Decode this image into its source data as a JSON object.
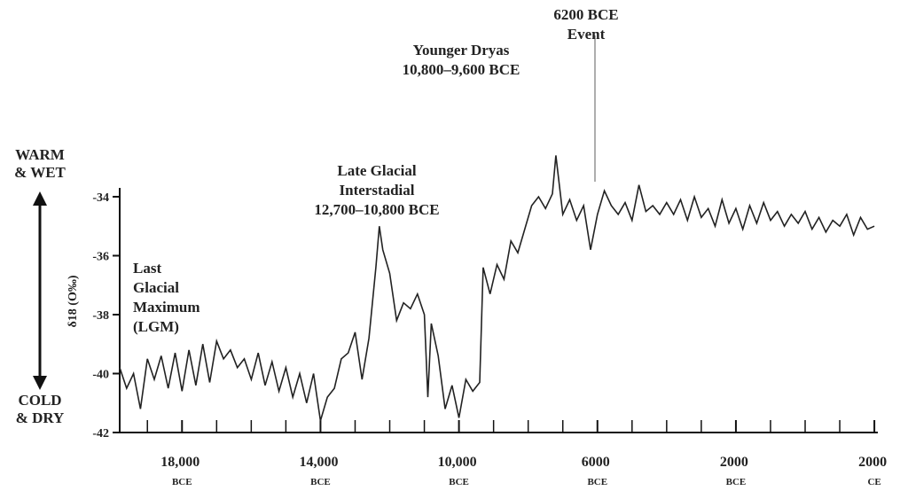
{
  "chart_data": {
    "type": "line",
    "y_label": "δ18 (O‰)",
    "annotations": {
      "warm": [
        "WARM",
        "& WET"
      ],
      "cold": [
        "COLD",
        "& DRY"
      ],
      "lgm": [
        "Last",
        "Glacial",
        "Maximum",
        "(LGM)"
      ],
      "interstadial": [
        "Late Glacial",
        "Interstadial",
        "12,700–10,800 BCE"
      ],
      "dryas": [
        "Younger Dryas",
        "10,800–9,600 BCE"
      ],
      "event": [
        "6200 BCE",
        "Event"
      ]
    },
    "xlim": [
      -19800,
      2100
    ],
    "xticks": [
      {
        "value": -18000,
        "label": "18,000 BCE"
      },
      {
        "value": -14000,
        "label": "14,000 BCE"
      },
      {
        "value": -10000,
        "label": "10,000 BCE"
      },
      {
        "value": -6000,
        "label": "6000 BCE"
      },
      {
        "value": -2000,
        "label": "2000 BCE"
      },
      {
        "value": 2000,
        "label": "2000 CE"
      }
    ],
    "xminorticks": [
      -19000,
      -17000,
      -16000,
      -15000,
      -13000,
      -12000,
      -11000,
      -9000,
      -8000,
      -7000,
      -5000,
      -4000,
      -3000,
      -1000,
      0,
      1000
    ],
    "ylim": [
      -42,
      -33.7
    ],
    "yticks": [
      -34,
      -36,
      -38,
      -40,
      -42
    ],
    "series": [
      {
        "color": "#222222",
        "x": [
          -19800,
          -19600,
          -19400,
          -19200,
          -19000,
          -18800,
          -18600,
          -18400,
          -18200,
          -18000,
          -17800,
          -17600,
          -17400,
          -17200,
          -17000,
          -16800,
          -16600,
          -16400,
          -16200,
          -16000,
          -15800,
          -15600,
          -15400,
          -15200,
          -15000,
          -14800,
          -14600,
          -14400,
          -14200,
          -14000,
          -13800,
          -13600,
          -13400,
          -13200,
          -13000,
          -12800,
          -12600,
          -12400,
          -12300,
          -12200,
          -12000,
          -11800,
          -11600,
          -11400,
          -11200,
          -11000,
          -10900,
          -10800,
          -10600,
          -10400,
          -10200,
          -10000,
          -9800,
          -9600,
          -9400,
          -9300,
          -9100,
          -8900,
          -8700,
          -8500,
          -8300,
          -8100,
          -7900,
          -7700,
          -7500,
          -7300,
          -7200,
          -7000,
          -6800,
          -6600,
          -6400,
          -6200,
          -6000,
          -5800,
          -5600,
          -5400,
          -5200,
          -5000,
          -4800,
          -4600,
          -4400,
          -4200,
          -4000,
          -3800,
          -3600,
          -3400,
          -3200,
          -3000,
          -2800,
          -2600,
          -2400,
          -2200,
          -2000,
          -1800,
          -1600,
          -1400,
          -1200,
          -1000,
          -800,
          -600,
          -400,
          -200,
          0,
          200,
          400,
          600,
          800,
          1000,
          1200,
          1400,
          1600,
          1800,
          2000
        ],
        "values": [
          -39.8,
          -40.5,
          -40,
          -41.2,
          -39.5,
          -40.2,
          -39.4,
          -40.5,
          -39.3,
          -40.6,
          -39.2,
          -40.4,
          -39,
          -40.3,
          -38.9,
          -39.5,
          -39.2,
          -39.8,
          -39.5,
          -40.2,
          -39.3,
          -40.4,
          -39.6,
          -40.6,
          -39.8,
          -40.8,
          -40,
          -41,
          -40,
          -41.6,
          -40.8,
          -40.5,
          -39.5,
          -39.3,
          -38.6,
          -40.2,
          -38.8,
          -36.4,
          -35,
          -35.8,
          -36.6,
          -38.2,
          -37.6,
          -37.8,
          -37.3,
          -38,
          -40.8,
          -38.3,
          -39.4,
          -41.2,
          -40.4,
          -41.5,
          -40.2,
          -40.6,
          -40.3,
          -36.4,
          -37.3,
          -36.3,
          -36.8,
          -35.5,
          -35.9,
          -35.1,
          -34.3,
          -34,
          -34.4,
          -33.9,
          -32.6,
          -34.6,
          -34.1,
          -34.8,
          -34.3,
          -35.8,
          -34.6,
          -33.8,
          -34.3,
          -34.6,
          -34.2,
          -34.8,
          -33.6,
          -34.5,
          -34.3,
          -34.6,
          -34.2,
          -34.6,
          -34.1,
          -34.8,
          -34,
          -34.7,
          -34.4,
          -35,
          -34.1,
          -34.9,
          -34.4,
          -35.1,
          -34.3,
          -34.9,
          -34.2,
          -34.8,
          -34.5,
          -35,
          -34.6,
          -34.9,
          -34.5,
          -35.1,
          -34.7,
          -35.2,
          -34.8,
          -35,
          -34.6,
          -35.3,
          -34.7,
          -35.1,
          -35
        ]
      }
    ]
  }
}
